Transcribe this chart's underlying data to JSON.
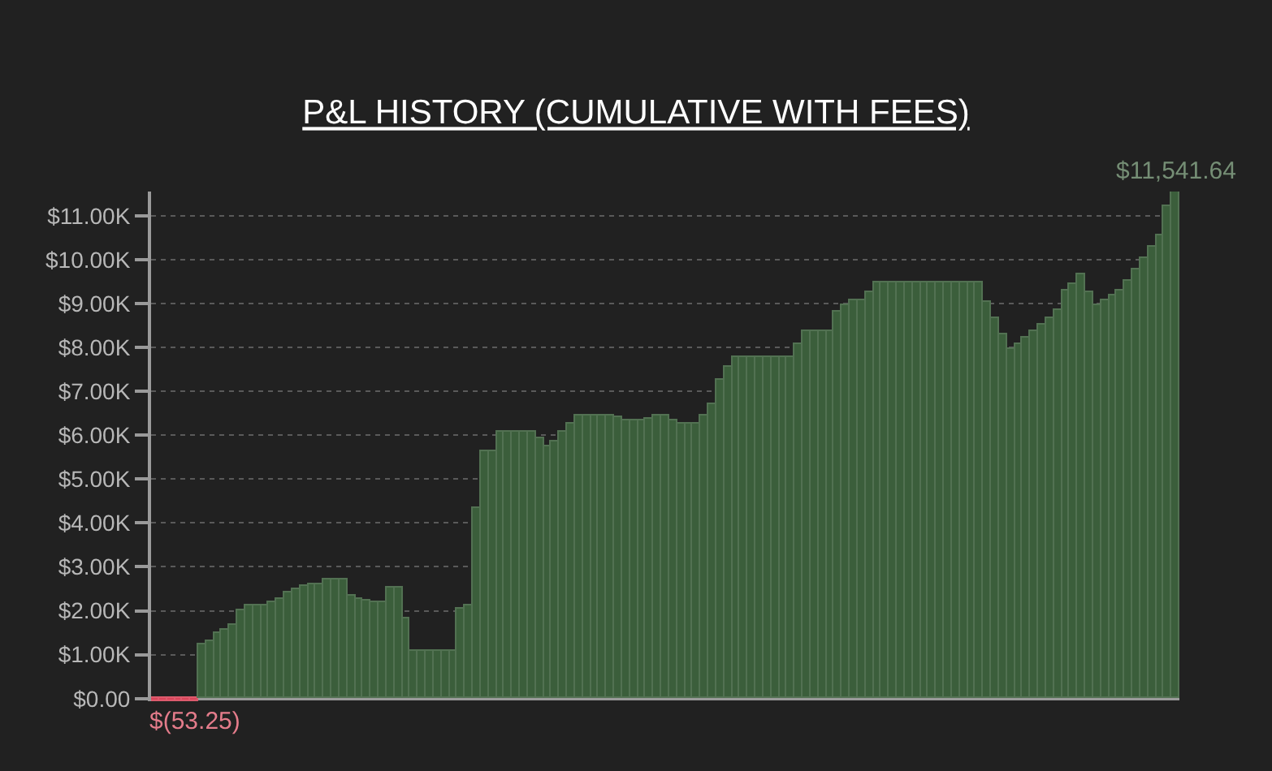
{
  "chart_data": {
    "type": "bar",
    "title": "P&L HISTORY (CUMULATIVE WITH FEES)",
    "categories": [
      null,
      null,
      null,
      null,
      null,
      null,
      null,
      null,
      null,
      null,
      null,
      null,
      null,
      null,
      null,
      null,
      null,
      null,
      null,
      null,
      null,
      null,
      null,
      null,
      null,
      null,
      null,
      null,
      null,
      null,
      null,
      null,
      null,
      null,
      null,
      null,
      null,
      null,
      null,
      null,
      null,
      null,
      null,
      null,
      null,
      null,
      null,
      null,
      null,
      null,
      null,
      null,
      null,
      null,
      null,
      null,
      null,
      null,
      null,
      null,
      null,
      null,
      null,
      null,
      null,
      null,
      null,
      null,
      null,
      null,
      null,
      null,
      null,
      null,
      null,
      null,
      null,
      null,
      null,
      null,
      null,
      null,
      null,
      null,
      null,
      null,
      null,
      null,
      null,
      null,
      null,
      null,
      null,
      null,
      null,
      null,
      null,
      null,
      null,
      null,
      null,
      null,
      null,
      null,
      null,
      null,
      null,
      null,
      null,
      null,
      null,
      null,
      null,
      null,
      null,
      null,
      null,
      null,
      null,
      null,
      null,
      null,
      null,
      null,
      null,
      null,
      null,
      null,
      null,
      null,
      null
    ],
    "values": [
      -53.25,
      -53.25,
      -53.25,
      -53.25,
      -53.25,
      -53.25,
      1230,
      1300,
      1500,
      1570,
      1670,
      2020,
      2140,
      2140,
      2120,
      2180,
      2270,
      2430,
      2490,
      2550,
      2590,
      2590,
      2700,
      2700,
      2700,
      2340,
      2280,
      2230,
      2180,
      2180,
      2510,
      2510,
      1840,
      1080,
      1080,
      1080,
      1080,
      1080,
      1080,
      2060,
      2140,
      4350,
      5640,
      5640,
      6080,
      6080,
      6080,
      6080,
      6080,
      5920,
      5760,
      5860,
      6080,
      6260,
      6450,
      6450,
      6450,
      6450,
      6450,
      6410,
      6320,
      6320,
      6320,
      6380,
      6450,
      6450,
      6350,
      6250,
      6250,
      6250,
      6450,
      6690,
      7250,
      7550,
      7790,
      7790,
      7790,
      7790,
      7790,
      7790,
      7790,
      7790,
      8060,
      8370,
      8370,
      8370,
      8370,
      8820,
      8980,
      9090,
      9090,
      9250,
      9470,
      9470,
      9470,
      9470,
      9470,
      9470,
      9470,
      9470,
      9470,
      9470,
      9470,
      9470,
      9470,
      9470,
      9020,
      8650,
      8310,
      7970,
      8060,
      8220,
      8370,
      8520,
      8650,
      8860,
      9290,
      9440,
      9660,
      9260,
      8950,
      9070,
      9170,
      9290,
      9530,
      9780,
      10050,
      10290,
      10540,
      11230,
      11541.64
    ],
    "colors": [
      "#d9455a",
      "#d9455a",
      "#d9455a",
      "#d9455a",
      "#d9455a",
      "#d9455a",
      "#3b5e3b",
      "#3b5e3b",
      "#3b5e3b",
      "#3b5e3b",
      "#3b5e3b",
      "#3b5e3b",
      "#3b5e3b",
      "#3b5e3b",
      "#3b5e3b",
      "#3b5e3b",
      "#3b5e3b",
      "#3b5e3b",
      "#3b5e3b",
      "#3b5e3b",
      "#3b5e3b",
      "#3b5e3b",
      "#3b5e3b",
      "#3b5e3b",
      "#3b5e3b",
      "#3b5e3b",
      "#3b5e3b",
      "#3b5e3b",
      "#3b5e3b",
      "#3b5e3b",
      "#3b5e3b",
      "#3b5e3b",
      "#3b5e3b",
      "#3b5e3b",
      "#3b5e3b",
      "#3b5e3b",
      "#3b5e3b",
      "#3b5e3b",
      "#3b5e3b",
      "#3b5e3b",
      "#3b5e3b",
      "#3b5e3b",
      "#3b5e3b",
      "#3b5e3b",
      "#3b5e3b",
      "#3b5e3b",
      "#3b5e3b",
      "#3b5e3b",
      "#3b5e3b",
      "#3b5e3b",
      "#3b5e3b",
      "#3b5e3b",
      "#3b5e3b",
      "#3b5e3b",
      "#3b5e3b",
      "#3b5e3b",
      "#3b5e3b",
      "#3b5e3b",
      "#3b5e3b",
      "#3b5e3b",
      "#3b5e3b",
      "#3b5e3b",
      "#3b5e3b",
      "#3b5e3b",
      "#3b5e3b",
      "#3b5e3b",
      "#3b5e3b",
      "#3b5e3b",
      "#3b5e3b",
      "#3b5e3b",
      "#3b5e3b",
      "#3b5e3b",
      "#3b5e3b",
      "#3b5e3b",
      "#3b5e3b",
      "#3b5e3b",
      "#3b5e3b",
      "#3b5e3b",
      "#3b5e3b",
      "#3b5e3b",
      "#3b5e3b",
      "#3b5e3b",
      "#3b5e3b",
      "#3b5e3b",
      "#3b5e3b",
      "#3b5e3b",
      "#3b5e3b",
      "#3b5e3b",
      "#3b5e3b",
      "#3b5e3b",
      "#3b5e3b",
      "#3b5e3b",
      "#3b5e3b",
      "#3b5e3b",
      "#3b5e3b",
      "#3b5e3b",
      "#3b5e3b",
      "#3b5e3b",
      "#3b5e3b",
      "#3b5e3b",
      "#3b5e3b",
      "#3b5e3b",
      "#3b5e3b",
      "#3b5e3b",
      "#3b5e3b",
      "#3b5e3b",
      "#3b5e3b",
      "#3b5e3b",
      "#3b5e3b",
      "#3b5e3b",
      "#3b5e3b",
      "#3b5e3b",
      "#3b5e3b",
      "#3b5e3b",
      "#3b5e3b",
      "#3b5e3b",
      "#3b5e3b",
      "#3b5e3b",
      "#3b5e3b",
      "#3b5e3b",
      "#3b5e3b",
      "#3b5e3b",
      "#3b5e3b",
      "#3b5e3b",
      "#3b5e3b",
      "#3b5e3b",
      "#3b5e3b",
      "#3b5e3b",
      "#3b5e3b",
      "#3b5e3b",
      "#3b5e3b"
    ],
    "value_labels": [
      null,
      null,
      null,
      null,
      null,
      "$(53.25)",
      null,
      null,
      null,
      null,
      null,
      null,
      null,
      null,
      null,
      null,
      null,
      null,
      null,
      null,
      null,
      null,
      null,
      null,
      null,
      null,
      null,
      null,
      null,
      null,
      null,
      null,
      null,
      null,
      null,
      null,
      null,
      null,
      null,
      null,
      null,
      null,
      null,
      null,
      null,
      null,
      null,
      null,
      null,
      null,
      null,
      null,
      null,
      null,
      null,
      null,
      null,
      null,
      null,
      null,
      null,
      null,
      null,
      null,
      null,
      null,
      null,
      null,
      null,
      null,
      null,
      null,
      null,
      null,
      null,
      null,
      null,
      null,
      null,
      null,
      null,
      null,
      null,
      null,
      null,
      null,
      null,
      null,
      null,
      null,
      null,
      null,
      null,
      null,
      null,
      null,
      null,
      null,
      null,
      null,
      null,
      null,
      null,
      null,
      null,
      null,
      null,
      null,
      null,
      null,
      null,
      null,
      null,
      null,
      null,
      null,
      null,
      null,
      null,
      null,
      null,
      null,
      null,
      null,
      null,
      null,
      null,
      null,
      null,
      null,
      "$11,541.64"
    ],
    "ylim": [
      -60,
      11550
    ],
    "yticks": [
      {
        "value": 0,
        "label": "$0.00"
      },
      {
        "value": 1000,
        "label": "$1.00K"
      },
      {
        "value": 2000,
        "label": "$2.00K"
      },
      {
        "value": 3000,
        "label": "$3.00K"
      },
      {
        "value": 4000,
        "label": "$4.00K"
      },
      {
        "value": 5000,
        "label": "$5.00K"
      },
      {
        "value": 6000,
        "label": "$6.00K"
      },
      {
        "value": 7000,
        "label": "$7.00K"
      },
      {
        "value": 8000,
        "label": "$8.00K"
      },
      {
        "value": 9000,
        "label": "$9.00K"
      },
      {
        "value": 10000,
        "label": "$10.00K"
      },
      {
        "value": 11000,
        "label": "$11.00K"
      }
    ],
    "grid": "y"
  }
}
